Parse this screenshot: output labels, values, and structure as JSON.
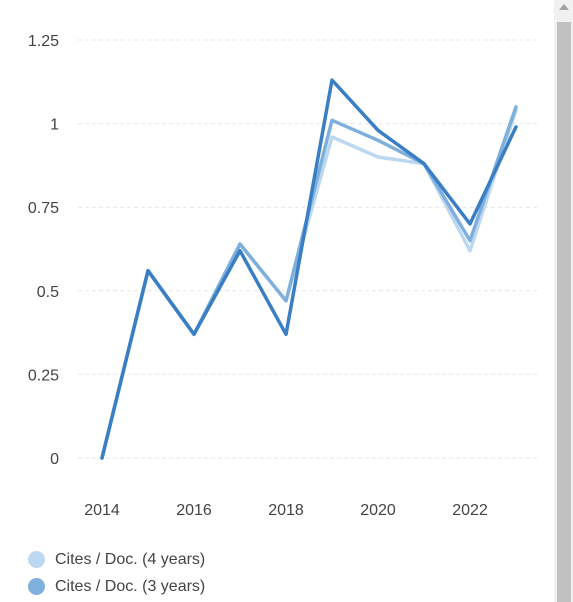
{
  "chart_data": {
    "type": "line",
    "x": [
      2014,
      2015,
      2016,
      2017,
      2018,
      2019,
      2020,
      2021,
      2022,
      2023
    ],
    "series": [
      {
        "name": "Cites / Doc. (4 years)",
        "color": "#bcd8f0",
        "values": [
          0,
          0.56,
          0.37,
          0.64,
          0.47,
          0.96,
          0.9,
          0.88,
          0.62,
          1.04
        ]
      },
      {
        "name": "Cites / Doc. (3 years)",
        "color": "#7fb0dd",
        "values": [
          0,
          0.56,
          0.37,
          0.64,
          0.47,
          1.01,
          0.95,
          0.88,
          0.65,
          1.05
        ]
      },
      {
        "name": "",
        "color": "#3a7fc4",
        "values": [
          0,
          0.56,
          0.37,
          0.62,
          0.37,
          1.13,
          0.98,
          0.88,
          0.7,
          0.99
        ]
      }
    ],
    "x_ticks": [
      "2014",
      "2016",
      "2018",
      "2020",
      "2022"
    ],
    "y_ticks": [
      "0",
      "0.25",
      "0.5",
      "0.75",
      "1",
      "1.25"
    ],
    "ylim": [
      0,
      1.25
    ],
    "xlim": [
      2014,
      2023
    ],
    "grid": true,
    "legend_position": "bottom-left"
  }
}
